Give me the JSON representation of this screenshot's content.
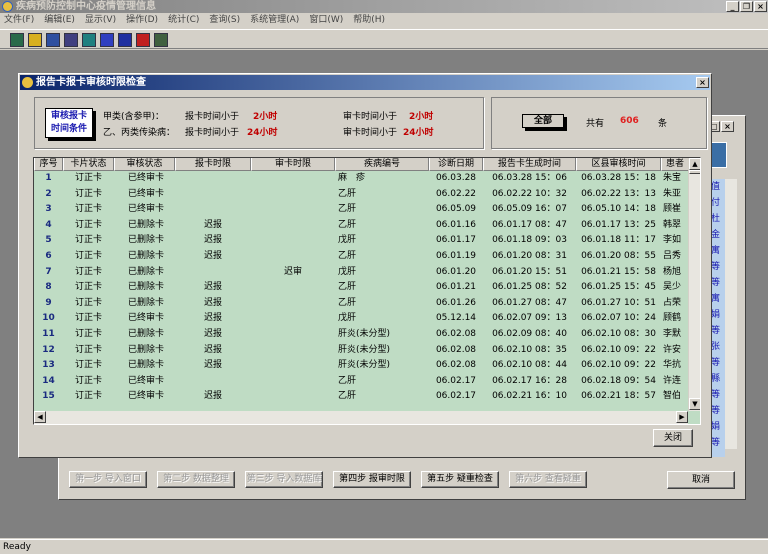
{
  "app": {
    "title": "疾病预防控制中心疫情管理信息",
    "status": "Ready",
    "menu": [
      "文件(F)",
      "编辑(E)",
      "显示(V)",
      "操作(D)",
      "统计(C)",
      "查询(S)",
      "系统管理(A)",
      "窗口(W)",
      "帮助(H)"
    ],
    "toolbar_icons": [
      "table-icon",
      "link-icon",
      "filter-icon",
      "list-icon",
      "import-icon",
      "chart-icon",
      "insert-icon",
      "export-icon",
      "exit-icon"
    ]
  },
  "background_window": {
    "column_chars": [
      "值",
      "付",
      "杜",
      "金",
      "寓",
      "等",
      "等",
      "寓",
      "娟",
      "等",
      "张",
      "等",
      "縣",
      "等",
      "等",
      "娟",
      "等"
    ],
    "buttons": [
      {
        "label": "第一步 导入窗口",
        "enabled": false
      },
      {
        "label": "第二步 数据整理",
        "enabled": false
      },
      {
        "label": "第三步 导入数据库",
        "enabled": false
      },
      {
        "label": "第四步 报审时限",
        "enabled": true
      },
      {
        "label": "第五步 疑重检查",
        "enabled": true
      },
      {
        "label": "第六步 查看疑重",
        "enabled": false
      }
    ],
    "cancel": "取消"
  },
  "dialog": {
    "title": "报告卡报卡审核时限检查",
    "criteria_badge": [
      "审核报卡",
      "时间条件"
    ],
    "class_a": {
      "label": "甲类(含参甲)：",
      "report_label": "报卡时间小于",
      "report_value": "2小时",
      "audit_label": "审卡时间小于",
      "audit_value": "2小时"
    },
    "class_bc": {
      "label": "乙、丙类传染病：",
      "report_label": "报卡时间小于",
      "report_value": "24小时",
      "audit_label": "审卡时间小于",
      "audit_value": "24小时"
    },
    "all_button": "全部",
    "total_prefix": "共有",
    "total_count": "606",
    "total_suffix": "条",
    "close": "关闭",
    "columns": [
      "序号",
      "卡片状态",
      "审核状态",
      "报卡时限",
      "审卡时限",
      "疾病编号",
      "诊断日期",
      "报告卡生成时间",
      "区县审核时间",
      "患者"
    ],
    "rows": [
      [
        "1",
        "订正卡",
        "已终审卡",
        "",
        "",
        "麻　疹",
        "06.03.28",
        "06.03.28 15：06",
        "06.03.28 15：18",
        "朱宝"
      ],
      [
        "2",
        "订正卡",
        "已终审卡",
        "",
        "",
        "乙肝",
        "06.02.22",
        "06.02.22 10：32",
        "06.02.22 13：13",
        "朱亚"
      ],
      [
        "3",
        "订正卡",
        "已终审卡",
        "",
        "",
        "乙肝",
        "06.05.09",
        "06.05.09 16：07",
        "06.05.10 14：18",
        "顾崔"
      ],
      [
        "4",
        "订正卡",
        "已删除卡",
        "迟报",
        "",
        "乙肝",
        "06.01.16",
        "06.01.17 08：47",
        "06.01.17 13：25",
        "韩翠"
      ],
      [
        "5",
        "订正卡",
        "已删除卡",
        "迟报",
        "",
        "戊肝",
        "06.01.17",
        "06.01.18 09：03",
        "06.01.18 11：17",
        "李如"
      ],
      [
        "6",
        "订正卡",
        "已删除卡",
        "迟报",
        "",
        "乙肝",
        "06.01.19",
        "06.01.20 08：31",
        "06.01.20 08：55",
        "吕秀"
      ],
      [
        "7",
        "订正卡",
        "已删除卡",
        "",
        "迟审",
        "戊肝",
        "06.01.20",
        "06.01.20 15：51",
        "06.01.21 15：58",
        "杨旭"
      ],
      [
        "8",
        "订正卡",
        "已删除卡",
        "迟报",
        "",
        "乙肝",
        "06.01.21",
        "06.01.25 08：52",
        "06.01.25 15：45",
        "吴少"
      ],
      [
        "9",
        "订正卡",
        "已删除卡",
        "迟报",
        "",
        "乙肝",
        "06.01.26",
        "06.01.27 08：47",
        "06.01.27 10：51",
        "占荣"
      ],
      [
        "10",
        "订正卡",
        "已终审卡",
        "迟报",
        "",
        "戊肝",
        "05.12.14",
        "06.02.07 09：13",
        "06.02.07 10：24",
        "顾鹤"
      ],
      [
        "11",
        "订正卡",
        "已删除卡",
        "迟报",
        "",
        "肝炎(未分型)",
        "06.02.08",
        "06.02.09 08：40",
        "06.02.10 08：30",
        "李默"
      ],
      [
        "12",
        "订正卡",
        "已删除卡",
        "迟报",
        "",
        "肝炎(未分型)",
        "06.02.08",
        "06.02.10 08：35",
        "06.02.10 09：22",
        "许安"
      ],
      [
        "13",
        "订正卡",
        "已删除卡",
        "迟报",
        "",
        "肝炎(未分型)",
        "06.02.08",
        "06.02.10 08：44",
        "06.02.10 09：22",
        "华抗"
      ],
      [
        "14",
        "订正卡",
        "已终审卡",
        "",
        "",
        "乙肝",
        "06.02.17",
        "06.02.17 16：28",
        "06.02.18 09：54",
        "许连"
      ],
      [
        "15",
        "订正卡",
        "已终审卡",
        "迟报",
        "",
        "乙肝",
        "06.02.17",
        "06.02.21 16：10",
        "06.02.21 18：57",
        "智伯"
      ]
    ]
  }
}
